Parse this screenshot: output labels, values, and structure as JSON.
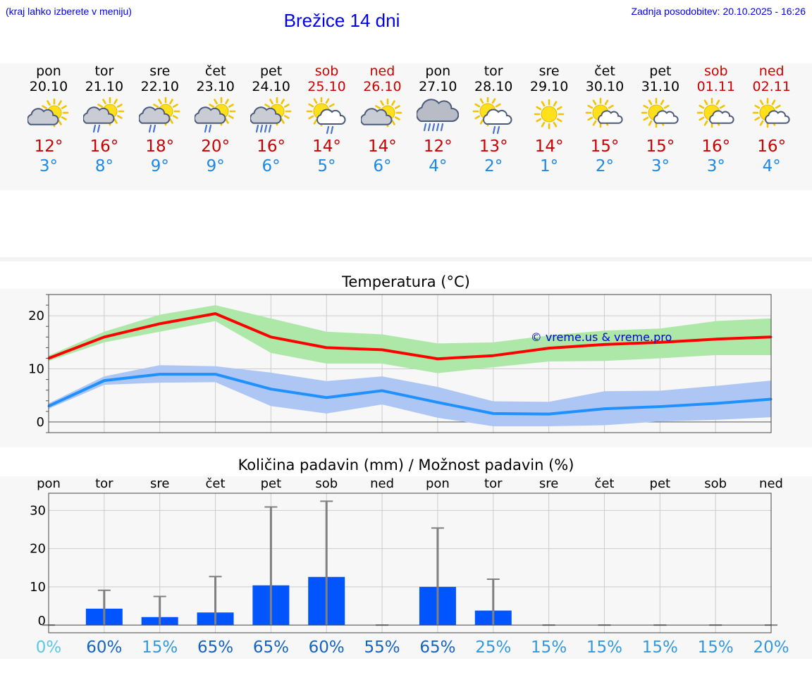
{
  "header": {
    "hint": "(kraj lahko izberete v meniju)",
    "title": "Brežice 14 dni",
    "updated": "Zadnja posodobitev: 20.10.2025 - 16:26"
  },
  "days": [
    {
      "name": "pon",
      "date": "20.10",
      "weekend": false,
      "icon": "partly-cloudy-icon",
      "max": "12°",
      "min": "3°"
    },
    {
      "name": "tor",
      "date": "21.10",
      "weekend": false,
      "icon": "partly-cloudy-rain-icon",
      "max": "16°",
      "min": "8°"
    },
    {
      "name": "sre",
      "date": "22.10",
      "weekend": false,
      "icon": "partly-cloudy-rain-icon",
      "max": "18°",
      "min": "9°"
    },
    {
      "name": "čet",
      "date": "23.10",
      "weekend": false,
      "icon": "partly-cloudy-rain-icon",
      "max": "20°",
      "min": "9°"
    },
    {
      "name": "pet",
      "date": "24.10",
      "weekend": false,
      "icon": "partly-cloudy-heavy-rain-icon",
      "max": "16°",
      "min": "6°"
    },
    {
      "name": "sob",
      "date": "25.10",
      "weekend": true,
      "icon": "sun-cloud-rain-icon",
      "max": "14°",
      "min": "5°"
    },
    {
      "name": "ned",
      "date": "26.10",
      "weekend": true,
      "icon": "partly-cloudy-icon",
      "max": "14°",
      "min": "6°"
    },
    {
      "name": "pon",
      "date": "27.10",
      "weekend": false,
      "icon": "heavy-rain-cloud-icon",
      "max": "12°",
      "min": "4°"
    },
    {
      "name": "tor",
      "date": "28.10",
      "weekend": false,
      "icon": "sun-cloud-rain-icon",
      "max": "13°",
      "min": "2°"
    },
    {
      "name": "sre",
      "date": "29.10",
      "weekend": false,
      "icon": "sun-icon",
      "max": "14°",
      "min": "1°"
    },
    {
      "name": "čet",
      "date": "30.10",
      "weekend": false,
      "icon": "sun-small-cloud-icon",
      "max": "15°",
      "min": "2°"
    },
    {
      "name": "pet",
      "date": "31.10",
      "weekend": false,
      "icon": "sun-small-cloud-icon",
      "max": "15°",
      "min": "3°"
    },
    {
      "name": "sob",
      "date": "01.11",
      "weekend": true,
      "icon": "sun-small-cloud-icon",
      "max": "16°",
      "min": "3°"
    },
    {
      "name": "ned",
      "date": "02.11",
      "weekend": true,
      "icon": "sun-small-cloud-icon",
      "max": "16°",
      "min": "4°"
    }
  ],
  "colors": {
    "max_line": "#ff0000",
    "max_band": "#aee8a8",
    "min_line": "#1e90ff",
    "min_band": "#aec6f4",
    "bar": "#0055ff",
    "whisker": "#808080",
    "weekend": "#cc0000",
    "pct_light": "#5bc8e6",
    "pct_mid": "#3399dd",
    "pct_dark": "#1565c0"
  },
  "chart_data": [
    {
      "type": "line",
      "title": "Temperatura (°C)",
      "watermark": "© vreme.us & vreme.pro",
      "x": [
        0,
        1,
        2,
        3,
        4,
        5,
        6,
        7,
        8,
        9,
        10,
        11,
        12,
        13
      ],
      "ylim": [
        -2,
        24
      ],
      "yticks": [
        0,
        10,
        20
      ],
      "grid": true,
      "series": [
        {
          "kind": "max",
          "values": [
            12,
            16,
            18.5,
            20.4,
            16,
            14,
            13.6,
            11.9,
            12.5,
            13.9,
            14.6,
            15,
            15.6,
            16
          ],
          "band_low": [
            11.5,
            15,
            17,
            19,
            13,
            11,
            11,
            9.2,
            10.3,
            11.4,
            11.5,
            12,
            12.6,
            12.6
          ],
          "band_high": [
            12.5,
            17,
            20.2,
            22,
            19.5,
            17,
            16.5,
            14.8,
            15,
            16.3,
            17.2,
            17.6,
            19,
            19.5
          ]
        },
        {
          "kind": "min",
          "values": [
            3,
            7.8,
            9,
            9,
            6.2,
            4.6,
            5.9,
            3.7,
            1.6,
            1.5,
            2.5,
            2.9,
            3.5,
            4.3
          ],
          "band_low": [
            2.5,
            7,
            7.4,
            7.5,
            3,
            1.6,
            3.3,
            0.8,
            -0.8,
            -0.8,
            -0.6,
            0.1,
            0.4,
            0.9
          ],
          "band_high": [
            3.5,
            8.6,
            10.7,
            10.5,
            9.3,
            7.7,
            8.6,
            6.6,
            3.9,
            3.8,
            5.8,
            5.9,
            6.8,
            7.8
          ]
        }
      ]
    },
    {
      "type": "bar",
      "title": "Količina padavin (mm) / Možnost padavin (%)",
      "categories": [
        "pon",
        "tor",
        "sre",
        "čet",
        "pet",
        "sob",
        "ned",
        "pon",
        "tor",
        "sre",
        "čet",
        "pet",
        "sob",
        "ned"
      ],
      "values": [
        0,
        4.3,
        2.1,
        3.3,
        10.4,
        12.6,
        0,
        10,
        3.8,
        0,
        0,
        0,
        0,
        0
      ],
      "whisker_max": [
        0,
        9.1,
        7.5,
        12.7,
        30.9,
        32.4,
        0,
        25.4,
        12,
        0,
        0,
        0,
        0,
        0
      ],
      "ylim": [
        -2,
        34.5
      ],
      "yticks": [
        0,
        10,
        20,
        30
      ],
      "grid": true,
      "probability": [
        "0%",
        "60%",
        "15%",
        "65%",
        "65%",
        "60%",
        "55%",
        "65%",
        "25%",
        "15%",
        "15%",
        "15%",
        "15%",
        "20%"
      ],
      "probability_shade": [
        "light",
        "dark",
        "mid",
        "dark",
        "dark",
        "dark",
        "dark",
        "dark",
        "mid",
        "mid",
        "mid",
        "mid",
        "mid",
        "mid"
      ]
    }
  ]
}
